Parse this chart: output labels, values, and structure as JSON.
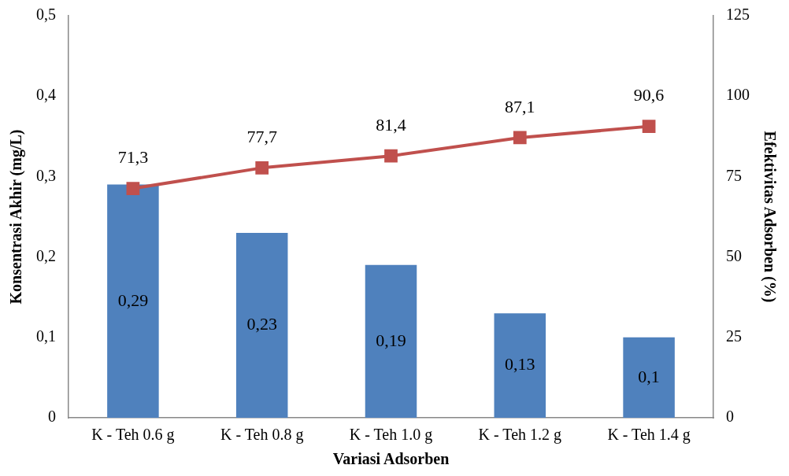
{
  "chart_data": {
    "type": "bar",
    "xlabel": "Variasi Adsorben",
    "ylabel": "Konsentrasi Akhir (mg/L)",
    "y2label": "Efektivitas Adsorben (%)",
    "categories": [
      "K - Teh 0.6 g",
      "K - Teh 0.8 g",
      "K - Teh 1.0 g",
      "K - Teh 1.2 g",
      "K - Teh 1.4 g"
    ],
    "series": [
      {
        "color": "#4f81bd",
        "values": [
          0.29,
          0.23,
          0.19,
          0.13,
          0.1
        ],
        "value_labels": [
          "0,29",
          "0,23",
          "0,19",
          "0,13",
          "0,1"
        ]
      },
      {
        "type": "line",
        "axis": "y2",
        "color": "#c0504d",
        "marker": "square",
        "line_style": "solid",
        "values": [
          71.3,
          77.7,
          81.4,
          87.1,
          90.6
        ],
        "value_labels": [
          "71,3",
          "77,7",
          "81,4",
          "87,1",
          "90,6"
        ]
      }
    ],
    "ylim": [
      0,
      0.5
    ],
    "yticks": [
      0,
      {
        "value": 0.1,
        "label": "0,1"
      },
      {
        "value": 0.2,
        "label": "0,2"
      },
      {
        "value": 0.3,
        "label": "0,3"
      },
      {
        "value": 0.4,
        "label": "0,4"
      },
      {
        "value": 0.5,
        "label": "0,5"
      }
    ],
    "y2lim": [
      0,
      125
    ],
    "y2ticks": [
      0,
      25,
      50,
      75,
      100,
      125
    ],
    "grid": false,
    "legend": false
  }
}
